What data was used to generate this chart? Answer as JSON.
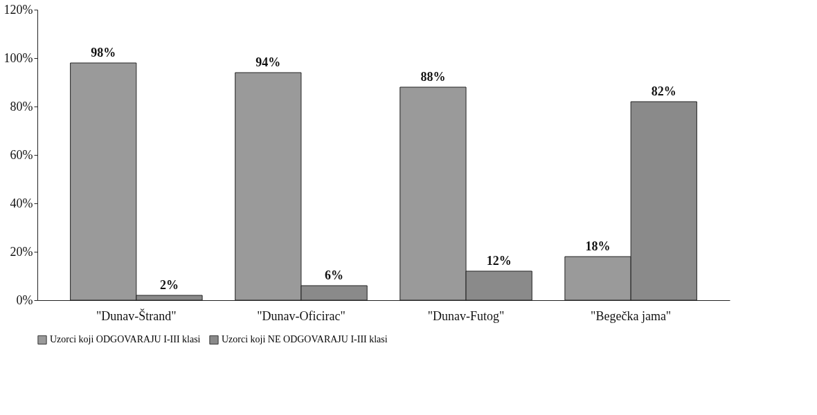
{
  "chart_data": {
    "type": "bar",
    "categories": [
      "\"Dunav-Štrand\"",
      "\"Dunav-Oficirac\"",
      "\"Dunav-Futog\"",
      "\"Begečka jama\""
    ],
    "series": [
      {
        "name": "Uzorci koji ODGOVARAJU I-III klasi",
        "color": "#9a9a9a",
        "values": [
          98,
          94,
          88,
          18
        ],
        "value_labels": [
          "98%",
          "94%",
          "88%",
          "18%"
        ]
      },
      {
        "name": "Uzorci koji NE ODGOVARAJU I-III klasi",
        "color": "#8a8a8a",
        "values": [
          2,
          6,
          12,
          82
        ],
        "value_labels": [
          "2%",
          "6%",
          "12%",
          "82%"
        ]
      }
    ],
    "ylim": [
      0,
      120
    ],
    "yticks": [
      {
        "value": 0,
        "label": "0%"
      },
      {
        "value": 20,
        "label": "20%"
      },
      {
        "value": 40,
        "label": "40%"
      },
      {
        "value": 60,
        "label": "60%"
      },
      {
        "value": 80,
        "label": "80%"
      },
      {
        "value": 100,
        "label": "100%"
      },
      {
        "value": 120,
        "label": "120%"
      }
    ],
    "grid": false,
    "legend": "bottom left"
  }
}
